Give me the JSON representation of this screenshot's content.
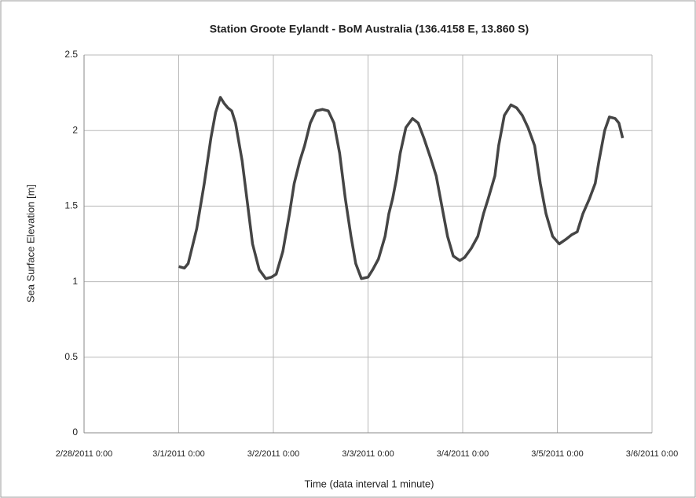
{
  "chart_data": {
    "type": "line",
    "title": "Station Groote Eylandt - BoM Australia (136.4158 E, 13.860 S)",
    "x_label": "Time (data interval 1 minute)",
    "y_label": "Sea Surface Elevation [m]",
    "xlim": [
      0,
      6
    ],
    "xticks": [
      {
        "value": 0,
        "label": "2/28/2011 0:00"
      },
      {
        "value": 1,
        "label": "3/1/2011 0:00"
      },
      {
        "value": 2,
        "label": "3/2/2011 0:00"
      },
      {
        "value": 3,
        "label": "3/3/2011 0:00"
      },
      {
        "value": 4,
        "label": "3/4/2011 0:00"
      },
      {
        "value": 5,
        "label": "3/5/2011 0:00"
      },
      {
        "value": 6,
        "label": "3/6/2011 0:00"
      }
    ],
    "ylim": [
      0,
      2.5
    ],
    "yticks": [
      0,
      0.5,
      1,
      1.5,
      2,
      2.5
    ],
    "grid": true,
    "x": [
      1.0,
      1.06,
      1.1,
      1.19,
      1.27,
      1.34,
      1.39,
      1.44,
      1.48,
      1.52,
      1.56,
      1.6,
      1.67,
      1.73,
      1.78,
      1.85,
      1.92,
      1.98,
      2.03,
      2.1,
      2.17,
      2.22,
      2.28,
      2.33,
      2.39,
      2.45,
      2.52,
      2.58,
      2.64,
      2.7,
      2.76,
      2.82,
      2.87,
      2.93,
      3.0,
      3.05,
      3.11,
      3.18,
      3.22,
      3.26,
      3.3,
      3.34,
      3.4,
      3.47,
      3.53,
      3.59,
      3.66,
      3.72,
      3.78,
      3.84,
      3.9,
      3.97,
      4.02,
      4.09,
      4.16,
      4.22,
      4.27,
      4.34,
      4.38,
      4.44,
      4.51,
      4.57,
      4.63,
      4.69,
      4.76,
      4.82,
      4.88,
      4.95,
      5.02,
      5.09,
      5.15,
      5.21,
      5.27,
      5.34,
      5.4,
      5.44,
      5.5,
      5.55,
      5.61,
      5.65,
      5.69
    ],
    "series": [
      {
        "name": "Sea Surface Elevation",
        "color": "#454545",
        "values": [
          1.1,
          1.09,
          1.12,
          1.35,
          1.65,
          1.95,
          2.12,
          2.22,
          2.18,
          2.15,
          2.13,
          2.05,
          1.8,
          1.5,
          1.25,
          1.08,
          1.02,
          1.03,
          1.05,
          1.2,
          1.45,
          1.65,
          1.8,
          1.9,
          2.05,
          2.13,
          2.14,
          2.13,
          2.05,
          1.85,
          1.55,
          1.3,
          1.12,
          1.02,
          1.03,
          1.08,
          1.15,
          1.3,
          1.45,
          1.55,
          1.68,
          1.85,
          2.02,
          2.08,
          2.05,
          1.95,
          1.82,
          1.7,
          1.5,
          1.3,
          1.17,
          1.14,
          1.16,
          1.22,
          1.3,
          1.45,
          1.55,
          1.7,
          1.9,
          2.1,
          2.17,
          2.15,
          2.1,
          2.02,
          1.9,
          1.65,
          1.45,
          1.3,
          1.25,
          1.28,
          1.31,
          1.33,
          1.45,
          1.55,
          1.65,
          1.8,
          2.0,
          2.09,
          2.08,
          2.05,
          1.95
        ]
      }
    ]
  }
}
